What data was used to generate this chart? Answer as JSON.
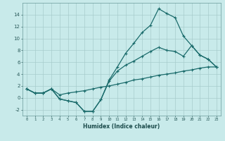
{
  "xlabel": "Humidex (Indice chaleur)",
  "bg_color": "#c8eaea",
  "line_color": "#1a6b6b",
  "grid_color": "#a8cccc",
  "x": [
    0,
    1,
    2,
    3,
    4,
    5,
    6,
    7,
    8,
    9,
    10,
    11,
    12,
    13,
    14,
    15,
    16,
    17,
    18,
    19,
    20,
    21,
    22,
    23
  ],
  "y_max": [
    1.5,
    0.8,
    0.8,
    1.5,
    -0.2,
    -0.5,
    -0.8,
    -2.3,
    -2.3,
    -0.3,
    3.0,
    5.2,
    7.5,
    9.2,
    11.0,
    12.2,
    15.0,
    14.2,
    13.5,
    10.4,
    8.8,
    7.2,
    6.5,
    5.2
  ],
  "y_mid": [
    1.5,
    0.8,
    0.8,
    1.5,
    -0.2,
    -0.5,
    -0.8,
    -2.3,
    -2.3,
    -0.3,
    2.8,
    4.5,
    5.5,
    6.2,
    7.0,
    7.8,
    8.5,
    8.0,
    7.8,
    7.0,
    8.8,
    7.2,
    6.5,
    5.2
  ],
  "y_min": [
    1.5,
    0.8,
    0.8,
    1.5,
    0.5,
    0.8,
    1.0,
    1.2,
    1.5,
    1.8,
    2.0,
    2.3,
    2.6,
    3.0,
    3.2,
    3.5,
    3.8,
    4.0,
    4.2,
    4.5,
    4.7,
    5.0,
    5.2,
    5.2
  ],
  "ylim": [
    -3,
    16
  ],
  "xlim": [
    -0.5,
    23.5
  ],
  "yticks": [
    -2,
    0,
    2,
    4,
    6,
    8,
    10,
    12,
    14
  ],
  "xticks": [
    0,
    1,
    2,
    3,
    4,
    5,
    6,
    7,
    8,
    9,
    10,
    11,
    12,
    13,
    14,
    15,
    16,
    17,
    18,
    19,
    20,
    21,
    22,
    23
  ]
}
